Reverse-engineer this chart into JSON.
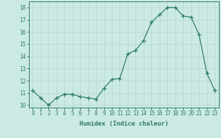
{
  "x": [
    0,
    1,
    2,
    3,
    4,
    5,
    6,
    7,
    8,
    9,
    10,
    11,
    12,
    13,
    14,
    15,
    16,
    17,
    18,
    19,
    20,
    21,
    22,
    23
  ],
  "y": [
    11.2,
    10.6,
    10.0,
    10.6,
    10.9,
    10.9,
    10.7,
    10.6,
    10.5,
    11.4,
    12.1,
    12.2,
    14.2,
    14.5,
    15.3,
    16.8,
    17.4,
    18.0,
    18.0,
    17.3,
    17.2,
    15.8,
    12.6,
    11.2
  ],
  "line_color": "#2d7a6a",
  "marker": "+",
  "marker_size": 4,
  "bg_color": "#cceae4",
  "grid_color": "#b8d8d0",
  "xlabel": "Humidex (Indice chaleur)",
  "xlim": [
    -0.5,
    23.5
  ],
  "ylim": [
    9.8,
    18.5
  ],
  "yticks": [
    10,
    11,
    12,
    13,
    14,
    15,
    16,
    17,
    18
  ],
  "xticks": [
    0,
    1,
    2,
    3,
    4,
    5,
    6,
    7,
    8,
    9,
    10,
    11,
    12,
    13,
    14,
    15,
    16,
    17,
    18,
    19,
    20,
    21,
    22,
    23
  ],
  "tick_color": "#2d7a6a",
  "label_fontsize": 6.5,
  "tick_fontsize": 5.5,
  "linewidth": 0.9,
  "markeredgewidth": 0.9
}
